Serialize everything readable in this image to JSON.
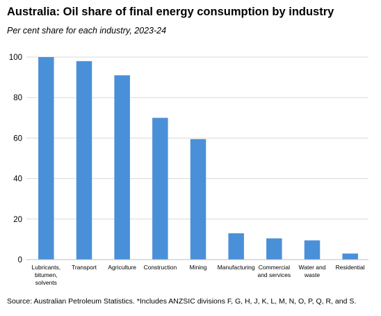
{
  "chart_data": {
    "type": "bar",
    "title": "Australia: Oil share of final energy consumption by industry",
    "subtitle": "Per cent share for each industry, 2023-24",
    "source": "Source: Australian Petroleum Statistics. *Includes ANZSIC divisions F, G, H, J, K, L, M, N, O, P, Q, R, and S.",
    "categories": [
      "Lubricants, bitumen, solvents",
      "Transport",
      "Agriculture",
      "Construction",
      "Mining",
      "Manufacturing",
      "Commercial and services",
      "Water and waste",
      "Residential"
    ],
    "category_lines": [
      [
        "Lubricants,",
        "bitumen,",
        "solvents"
      ],
      [
        "Transport"
      ],
      [
        "Agriculture"
      ],
      [
        "Construction"
      ],
      [
        "Mining"
      ],
      [
        "Manufacturing"
      ],
      [
        "Commercial",
        "and services"
      ],
      [
        "Water and",
        "waste"
      ],
      [
        "Residential"
      ]
    ],
    "values": [
      100,
      98,
      91,
      70,
      59.5,
      13,
      10.5,
      9.5,
      3
    ],
    "ylim": [
      0,
      100
    ],
    "yticks": [
      0,
      20,
      40,
      60,
      80,
      100
    ],
    "grid": true,
    "bar_color": "#4a90d9",
    "grid_color": "#d9d9d9"
  }
}
